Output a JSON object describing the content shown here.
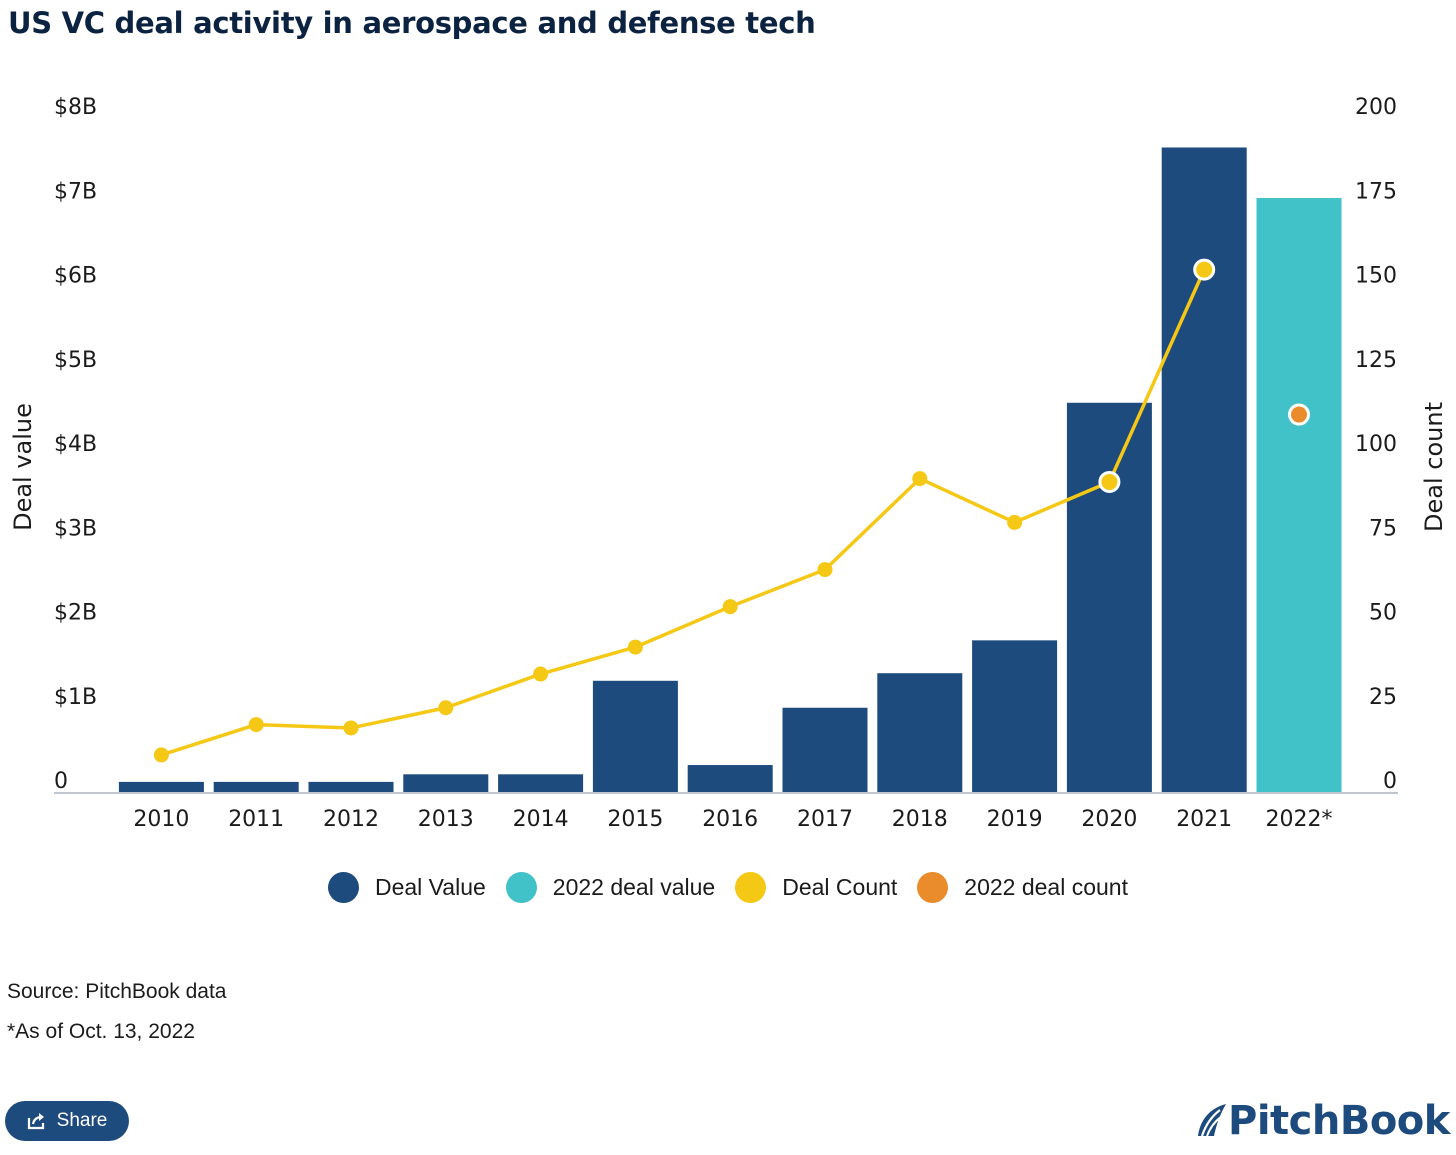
{
  "title": "US VC deal activity in aerospace and defense tech",
  "chart_data": {
    "type": "bar",
    "categories": [
      "2010",
      "2011",
      "2012",
      "2013",
      "2014",
      "2015",
      "2016",
      "2017",
      "2018",
      "2019",
      "2020",
      "2021",
      "2022*"
    ],
    "series": [
      {
        "name": "Deal Value",
        "kind": "bar",
        "axis": "left",
        "color": "#1e4b7d",
        "values": [
          0.12,
          0.12,
          0.12,
          0.21,
          0.21,
          1.32,
          0.32,
          1.0,
          1.41,
          1.8,
          4.62,
          7.65,
          null
        ]
      },
      {
        "name": "2022 deal value",
        "kind": "bar",
        "axis": "left",
        "color": "#41c1c8",
        "values": [
          null,
          null,
          null,
          null,
          null,
          null,
          null,
          null,
          null,
          null,
          null,
          null,
          7.05
        ]
      },
      {
        "name": "Deal Count",
        "kind": "line",
        "axis": "right",
        "color": "#f5c816",
        "values": [
          11,
          20,
          19,
          25,
          35,
          43,
          55,
          66,
          93,
          80,
          92,
          155,
          null
        ]
      },
      {
        "name": "2022 deal count",
        "kind": "point",
        "axis": "right",
        "color": "#eb8c2c",
        "values": [
          null,
          null,
          null,
          null,
          null,
          null,
          null,
          null,
          null,
          null,
          null,
          null,
          112
        ]
      }
    ],
    "y_left": {
      "label": "Deal value",
      "ylim": [
        0,
        8
      ],
      "ticks": [
        "0",
        "$1B",
        "$2B",
        "$3B",
        "$4B",
        "$5B",
        "$6B",
        "$7B",
        "$8B"
      ]
    },
    "y_right": {
      "label": "Deal count",
      "ylim": [
        0,
        200
      ],
      "ticks": [
        "0",
        "25",
        "50",
        "75",
        "100",
        "125",
        "150",
        "175",
        "200"
      ]
    },
    "highlighted_points": [
      "2020",
      "2021"
    ],
    "grid": false,
    "legend_position": "bottom-center"
  },
  "legend": [
    {
      "label": "Deal Value",
      "color": "#1e4b7d"
    },
    {
      "label": "2022 deal value",
      "color": "#41c1c8"
    },
    {
      "label": "Deal Count",
      "color": "#f5c816"
    },
    {
      "label": "2022 deal count",
      "color": "#eb8c2c"
    }
  ],
  "source": "Source: PitchBook data",
  "footnote": "*As of Oct. 13, 2022",
  "share_label": "Share",
  "logo_text": "PitchBook"
}
